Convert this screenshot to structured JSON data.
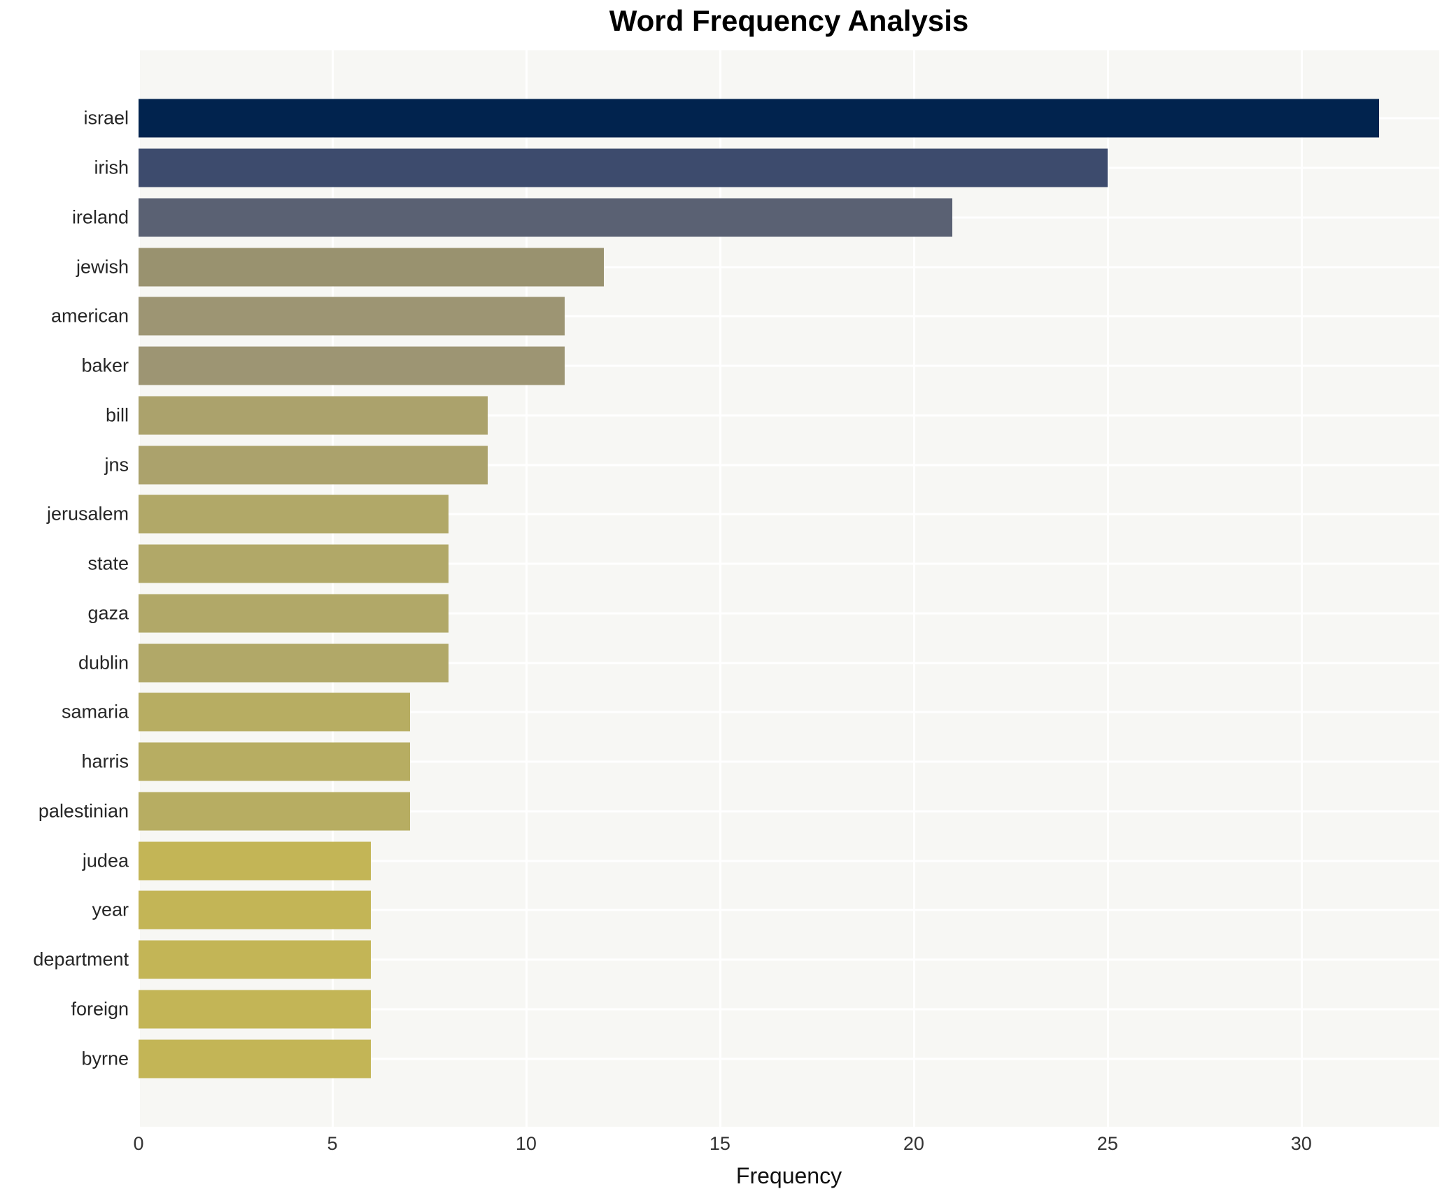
{
  "title": "Word Frequency Analysis",
  "chart_data": {
    "type": "bar",
    "orientation": "horizontal",
    "title": "Word Frequency Analysis",
    "xlabel": "Frequency",
    "ylabel": "",
    "categories": [
      "israel",
      "irish",
      "ireland",
      "jewish",
      "american",
      "baker",
      "bill",
      "jns",
      "jerusalem",
      "state",
      "gaza",
      "dublin",
      "samaria",
      "harris",
      "palestinian",
      "judea",
      "year",
      "department",
      "foreign",
      "byrne"
    ],
    "values": [
      32,
      25,
      21,
      12,
      11,
      11,
      9,
      9,
      8,
      8,
      8,
      8,
      7,
      7,
      7,
      6,
      6,
      6,
      6,
      6
    ],
    "bar_colors": [
      "#01234e",
      "#3d4b6d",
      "#5a6173",
      "#99926f",
      "#9d9573",
      "#9d9573",
      "#aba26c",
      "#aba26c",
      "#b1a868",
      "#b1a868",
      "#b1a868",
      "#b1a868",
      "#b7ad62",
      "#b7ad62",
      "#b7ad62",
      "#c3b556",
      "#c3b556",
      "#c3b556",
      "#c3b556",
      "#c3b556"
    ],
    "xlim": [
      0,
      33.56
    ],
    "xticks": [
      0,
      5,
      10,
      15,
      20,
      25,
      30
    ],
    "grid": true,
    "legend": false,
    "plot_background": "#f7f7f4",
    "grid_color": "#ffffff"
  }
}
